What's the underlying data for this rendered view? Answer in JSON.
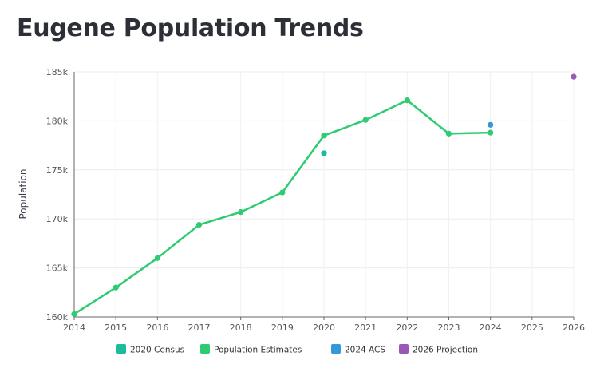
{
  "page": {
    "title": "Eugene Population Trends"
  },
  "chart_data": {
    "type": "line",
    "title": "Eugene Population Trends",
    "xlabel": "",
    "ylabel": "Population",
    "xlim": [
      2014,
      2026
    ],
    "ylim": [
      160000,
      185000
    ],
    "x_ticks": [
      "2014",
      "2015",
      "2016",
      "2017",
      "2018",
      "2019",
      "2020",
      "2021",
      "2022",
      "2023",
      "2024",
      "2025",
      "2026"
    ],
    "y_ticks": [
      "160k",
      "165k",
      "170k",
      "175k",
      "180k",
      "185k"
    ],
    "y_tick_values": [
      160000,
      165000,
      170000,
      175000,
      180000,
      185000
    ],
    "grid": true,
    "legend_position": "bottom",
    "series": [
      {
        "name": "2020 Census",
        "kind": "point",
        "color": "#1abc9c",
        "x": [
          2020
        ],
        "values": [
          176700
        ]
      },
      {
        "name": "Population Estimates",
        "kind": "line",
        "color": "#2ecc71",
        "x": [
          2014,
          2015,
          2016,
          2017,
          2018,
          2019,
          2020,
          2021,
          2022,
          2023,
          2024
        ],
        "values": [
          160300,
          163000,
          166000,
          169400,
          170700,
          172700,
          178500,
          180100,
          182100,
          178700,
          178800
        ]
      },
      {
        "name": "2024 ACS",
        "kind": "point",
        "color": "#3498db",
        "x": [
          2024
        ],
        "values": [
          179600
        ]
      },
      {
        "name": "2026 Projection",
        "kind": "point",
        "color": "#9b59b6",
        "x": [
          2026
        ],
        "values": [
          184500
        ]
      }
    ]
  }
}
